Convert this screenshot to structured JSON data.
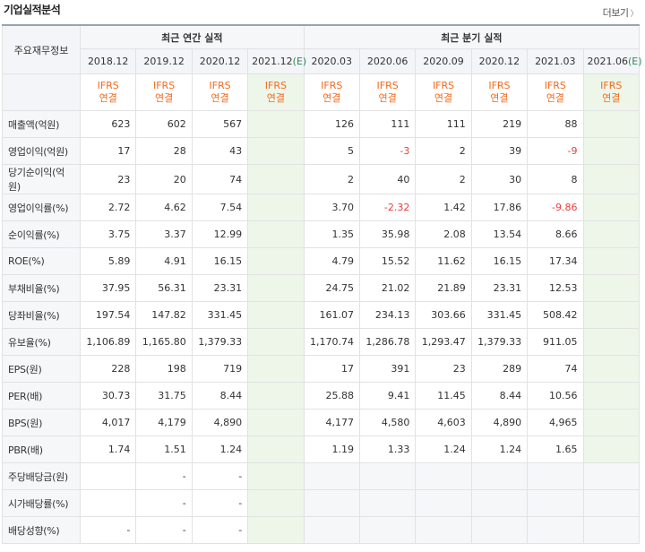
{
  "header": {
    "title": "기업실적분석",
    "more_label": "더보기",
    "more_icon": "chevron-right-icon"
  },
  "table": {
    "corner_label": "주요재무정보",
    "groups": {
      "annual": "최근 연간 실적",
      "quarterly": "최근 분기 실적"
    },
    "periods": [
      {
        "date": "2018.12",
        "est": ""
      },
      {
        "date": "2019.12",
        "est": ""
      },
      {
        "date": "2020.12",
        "est": ""
      },
      {
        "date": "2021.12",
        "est": "(E)"
      },
      {
        "date": "2020.03",
        "est": ""
      },
      {
        "date": "2020.06",
        "est": ""
      },
      {
        "date": "2020.09",
        "est": ""
      },
      {
        "date": "2020.12",
        "est": ""
      },
      {
        "date": "2021.03",
        "est": ""
      },
      {
        "date": "2021.06",
        "est": "(E)"
      }
    ],
    "basis": {
      "line1": "IFRS",
      "line2": "연결"
    },
    "rows": [
      {
        "label": "매출액(억원)",
        "values": [
          "623",
          "602",
          "567",
          "",
          "126",
          "111",
          "111",
          "219",
          "88",
          ""
        ]
      },
      {
        "label": "영업이익(억원)",
        "values": [
          "17",
          "28",
          "43",
          "",
          "5",
          "-3",
          "2",
          "39",
          "-9",
          ""
        ]
      },
      {
        "label": "당기순이익(억원)",
        "values": [
          "23",
          "20",
          "74",
          "",
          "2",
          "40",
          "2",
          "30",
          "8",
          ""
        ]
      },
      {
        "label": "영업이익률(%)",
        "values": [
          "2.72",
          "4.62",
          "7.54",
          "",
          "3.70",
          "-2.32",
          "1.42",
          "17.86",
          "-9.86",
          ""
        ]
      },
      {
        "label": "순이익률(%)",
        "values": [
          "3.75",
          "3.37",
          "12.99",
          "",
          "1.35",
          "35.98",
          "2.08",
          "13.54",
          "8.66",
          ""
        ]
      },
      {
        "label": "ROE(%)",
        "values": [
          "5.89",
          "4.91",
          "16.15",
          "",
          "4.79",
          "15.52",
          "11.62",
          "16.15",
          "17.34",
          ""
        ]
      },
      {
        "label": "부채비율(%)",
        "values": [
          "37.95",
          "56.31",
          "23.31",
          "",
          "24.75",
          "21.02",
          "21.89",
          "23.31",
          "12.53",
          ""
        ]
      },
      {
        "label": "당좌비율(%)",
        "values": [
          "197.54",
          "147.82",
          "331.45",
          "",
          "161.07",
          "234.13",
          "303.66",
          "331.45",
          "508.42",
          ""
        ]
      },
      {
        "label": "유보율(%)",
        "values": [
          "1,106.89",
          "1,165.80",
          "1,379.33",
          "",
          "1,170.74",
          "1,286.78",
          "1,293.47",
          "1,379.33",
          "911.05",
          ""
        ]
      },
      {
        "label": "EPS(원)",
        "values": [
          "228",
          "198",
          "719",
          "",
          "17",
          "391",
          "23",
          "289",
          "74",
          ""
        ]
      },
      {
        "label": "PER(배)",
        "values": [
          "30.73",
          "31.75",
          "8.44",
          "",
          "25.88",
          "9.41",
          "11.45",
          "8.44",
          "10.56",
          ""
        ]
      },
      {
        "label": "BPS(원)",
        "values": [
          "4,017",
          "4,179",
          "4,890",
          "",
          "4,177",
          "4,580",
          "4,603",
          "4,890",
          "4,965",
          ""
        ]
      },
      {
        "label": "PBR(배)",
        "values": [
          "1.74",
          "1.51",
          "1.24",
          "",
          "1.19",
          "1.33",
          "1.24",
          "1.24",
          "1.65",
          ""
        ]
      },
      {
        "label": "주당배당금(원)",
        "values": [
          "",
          "-",
          "-",
          "",
          "",
          "",
          "",
          "",
          "",
          ""
        ]
      },
      {
        "label": "시가배당률(%)",
        "values": [
          "",
          "-",
          "-",
          "",
          "",
          "",
          "",
          "",
          "",
          ""
        ]
      },
      {
        "label": "배당성향(%)",
        "values": [
          "-",
          "-",
          "-",
          "",
          "",
          "",
          "",
          "",
          "",
          ""
        ]
      }
    ]
  },
  "colors": {
    "negative": "#e8403d",
    "ifrs": "#f26b1d",
    "estimate_bg": "#eef6ea",
    "estimate_text": "#2e8b57"
  }
}
